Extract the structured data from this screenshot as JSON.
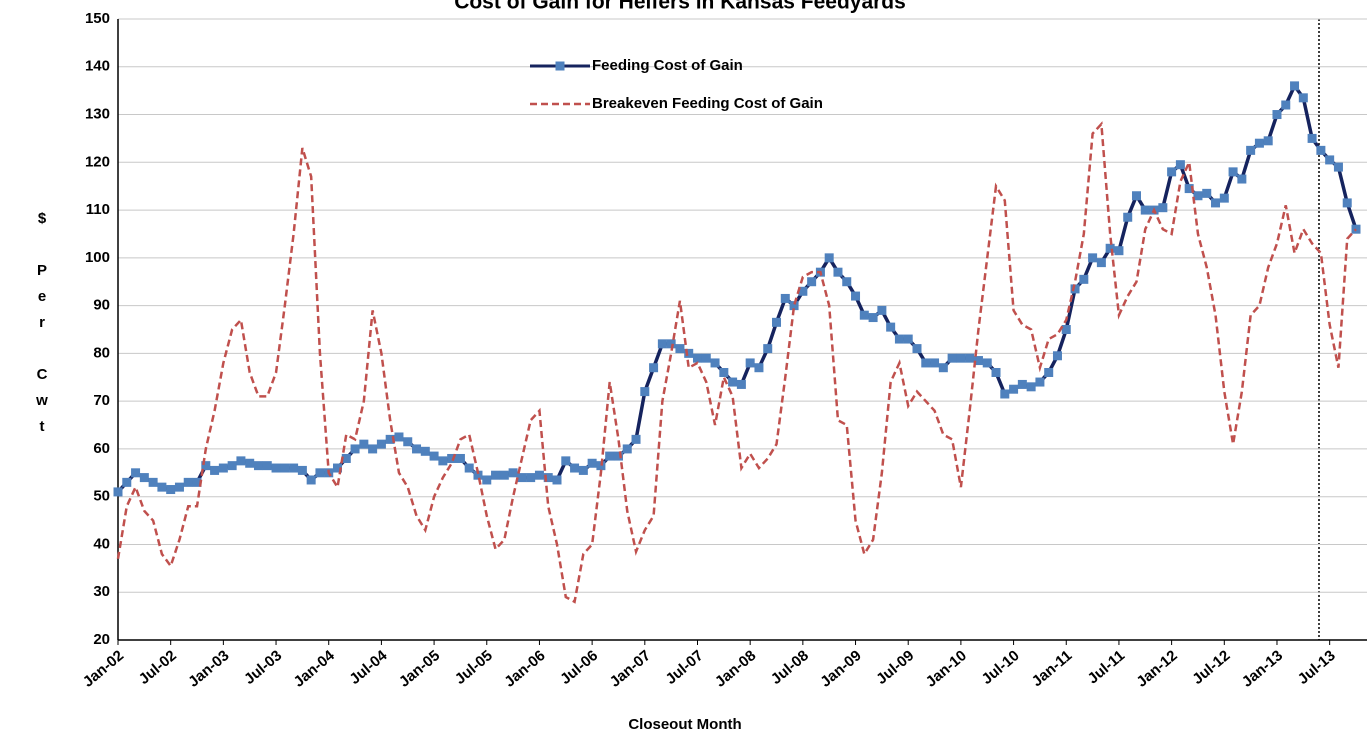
{
  "chart_data": {
    "type": "line",
    "title": "Cost of Gain for Heifers in Kansas Feedyards",
    "y_label": "$ Per Cwt",
    "x_label": "Closeout Month",
    "categories": [
      "Jan-02",
      null,
      null,
      null,
      null,
      null,
      "Jul-02",
      null,
      null,
      null,
      null,
      null,
      "Jan-03",
      null,
      null,
      null,
      null,
      null,
      "Jul-03",
      null,
      null,
      null,
      null,
      null,
      "Jan-04",
      null,
      null,
      null,
      null,
      null,
      "Jul-04",
      null,
      null,
      null,
      null,
      null,
      "Jan-05",
      null,
      null,
      null,
      null,
      null,
      "Jul-05",
      null,
      null,
      null,
      null,
      null,
      "Jan-06",
      null,
      null,
      null,
      null,
      null,
      "Jul-06",
      null,
      null,
      null,
      null,
      null,
      "Jan-07",
      null,
      null,
      null,
      null,
      null,
      "Jul-07",
      null,
      null,
      null,
      null,
      null,
      "Jan-08",
      null,
      null,
      null,
      null,
      null,
      "Jul-08",
      null,
      null,
      null,
      null,
      null,
      "Jan-09",
      null,
      null,
      null,
      null,
      null,
      "Jul-09",
      null,
      null,
      null,
      null,
      null,
      "Jan-10",
      null,
      null,
      null,
      null,
      null,
      "Jul-10",
      null,
      null,
      null,
      null,
      null,
      "Jan-11",
      null,
      null,
      null,
      null,
      null,
      "Jul-11",
      null,
      null,
      null,
      null,
      null,
      "Jan-12",
      null,
      null,
      null,
      null,
      null,
      "Jul-12",
      null,
      null,
      null,
      null,
      null,
      "Jan-13",
      null,
      null,
      null,
      null,
      null,
      "Jul-13",
      null,
      null,
      null
    ],
    "series": [
      {
        "name": "Feeding Cost of Gain",
        "color": "#15235e",
        "marker_color": "#4f81bd",
        "dashed": false,
        "markers": true,
        "values": [
          51,
          53,
          55,
          54,
          53,
          52,
          51.5,
          52,
          53,
          53,
          56.5,
          55.5,
          56,
          56.5,
          57.5,
          57,
          56.5,
          56.5,
          56,
          56,
          56,
          55.5,
          53.5,
          55,
          55,
          56,
          58,
          60,
          61,
          60,
          61,
          62,
          62.5,
          61.5,
          60,
          59.5,
          58.5,
          57.5,
          58,
          58,
          56,
          54.5,
          53.5,
          54.5,
          54.5,
          55,
          54,
          54,
          54.5,
          54,
          53.5,
          57.5,
          56,
          55.5,
          57,
          56.5,
          58.5,
          58.5,
          60,
          62,
          72,
          77,
          82,
          82,
          81,
          80,
          79,
          79,
          78,
          76,
          74,
          73.5,
          78,
          77,
          81,
          86.5,
          91.5,
          90,
          93,
          95,
          97,
          100,
          97,
          95,
          92,
          88,
          87.5,
          89,
          85.5,
          83,
          83,
          81,
          78,
          78,
          77,
          79,
          79,
          79,
          78.5,
          78,
          76,
          71.5,
          72.5,
          73.5,
          73,
          74,
          76,
          79.5,
          85,
          93.5,
          95.5,
          100,
          99,
          102,
          101.5,
          108.5,
          113,
          110,
          110,
          110.5,
          118,
          119.5,
          114.5,
          113,
          113.5,
          111.5,
          112.5,
          118,
          116.5,
          122.5,
          124,
          124.5,
          130,
          132,
          136,
          133.5,
          125,
          122.5,
          120.5,
          119,
          111.5,
          106
        ]
      },
      {
        "name": "Breakeven Feeding Cost of Gain",
        "color": "#c0504d",
        "dashed": true,
        "markers": false,
        "values": [
          37,
          48,
          52,
          47,
          45,
          38,
          35.5,
          41,
          48,
          48,
          60,
          68,
          78,
          85,
          87,
          76,
          71,
          71,
          76,
          90,
          105,
          123,
          117,
          80,
          55,
          52,
          63,
          62,
          70,
          89,
          80,
          66,
          55,
          52,
          46,
          43,
          50,
          54,
          57,
          62,
          63,
          55,
          46,
          39,
          41,
          50,
          58,
          66,
          68,
          48,
          40,
          29,
          28,
          38,
          40,
          55,
          74,
          62,
          47,
          38.5,
          43,
          46,
          70,
          80,
          91,
          77,
          78,
          74,
          65,
          75,
          71,
          56,
          59,
          56,
          58,
          61,
          75,
          90,
          96,
          97,
          97,
          90,
          66,
          65,
          45,
          38,
          41,
          55,
          74,
          78,
          69,
          72,
          70,
          68,
          63,
          62,
          52,
          68,
          85,
          100,
          115,
          112,
          89,
          86,
          85,
          77,
          83,
          84,
          87,
          95,
          105,
          126,
          128,
          105,
          88,
          92,
          95,
          106,
          110,
          106,
          105,
          116,
          120,
          105,
          98,
          88,
          72,
          61,
          72,
          88,
          90,
          98,
          103,
          111,
          101,
          106,
          103,
          101,
          86,
          77,
          104,
          106
        ]
      }
    ],
    "ylim": [
      20,
      150
    ],
    "yticks": [
      20,
      30,
      40,
      50,
      60,
      70,
      80,
      90,
      100,
      110,
      120,
      130,
      140,
      150
    ],
    "grid": true
  }
}
